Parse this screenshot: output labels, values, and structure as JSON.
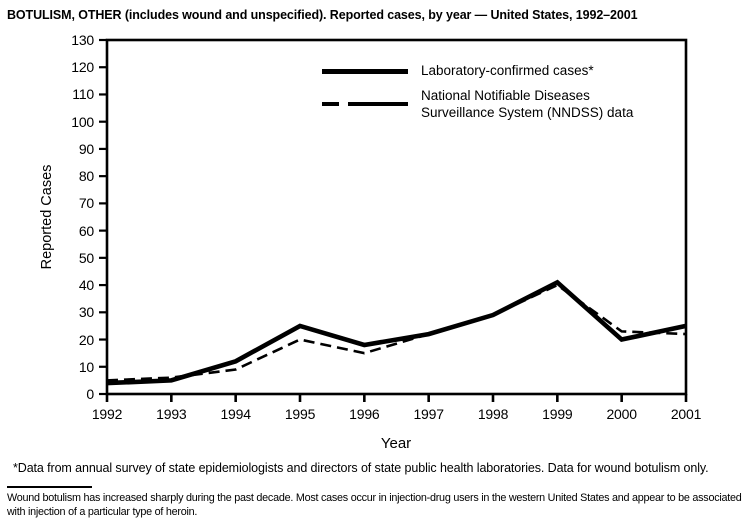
{
  "title": "BOTULISM, OTHER (includes wound and unspecified). Reported cases, by year — United States, 1992–2001",
  "chart_data": {
    "type": "line",
    "x": [
      1992,
      1993,
      1994,
      1995,
      1996,
      1997,
      1998,
      1999,
      2000,
      2001
    ],
    "series": [
      {
        "name": "Laboratory-confirmed cases*",
        "line_style": "solid",
        "values": [
          4,
          5,
          12,
          25,
          18,
          22,
          29,
          41,
          20,
          25
        ]
      },
      {
        "name": "National Notifiable Diseases Surveillance System (NNDSS) data",
        "line_style": "dashed",
        "values": [
          5,
          6,
          9,
          20,
          15,
          22,
          29,
          40,
          23,
          22
        ]
      }
    ],
    "xlabel": "Year",
    "ylabel": "Reported Cases",
    "ylim": [
      0,
      130
    ],
    "ytick_interval": 10,
    "grid": false,
    "legend_position": "inside-top-right",
    "line_color": "#000000",
    "background_color": "#ffffff"
  },
  "legend": {
    "items": [
      {
        "style": "solid",
        "lines": [
          "Laboratory-confirmed cases*"
        ]
      },
      {
        "style": "dashed",
        "lines": [
          "National Notifiable Diseases",
          "Surveillance System (NNDSS) data"
        ]
      }
    ]
  },
  "footnotes": {
    "asterisk_note": "*Data from annual survey of state epidemiologists and directors of state public health laboratories. Data for wound botulism only.",
    "bottom_note_lines": [
      "Wound botulism has increased sharply during the past decade. Most cases occur in injection-drug users in the western United States and appear to be associated",
      "with injection of a particular type of heroin."
    ]
  }
}
